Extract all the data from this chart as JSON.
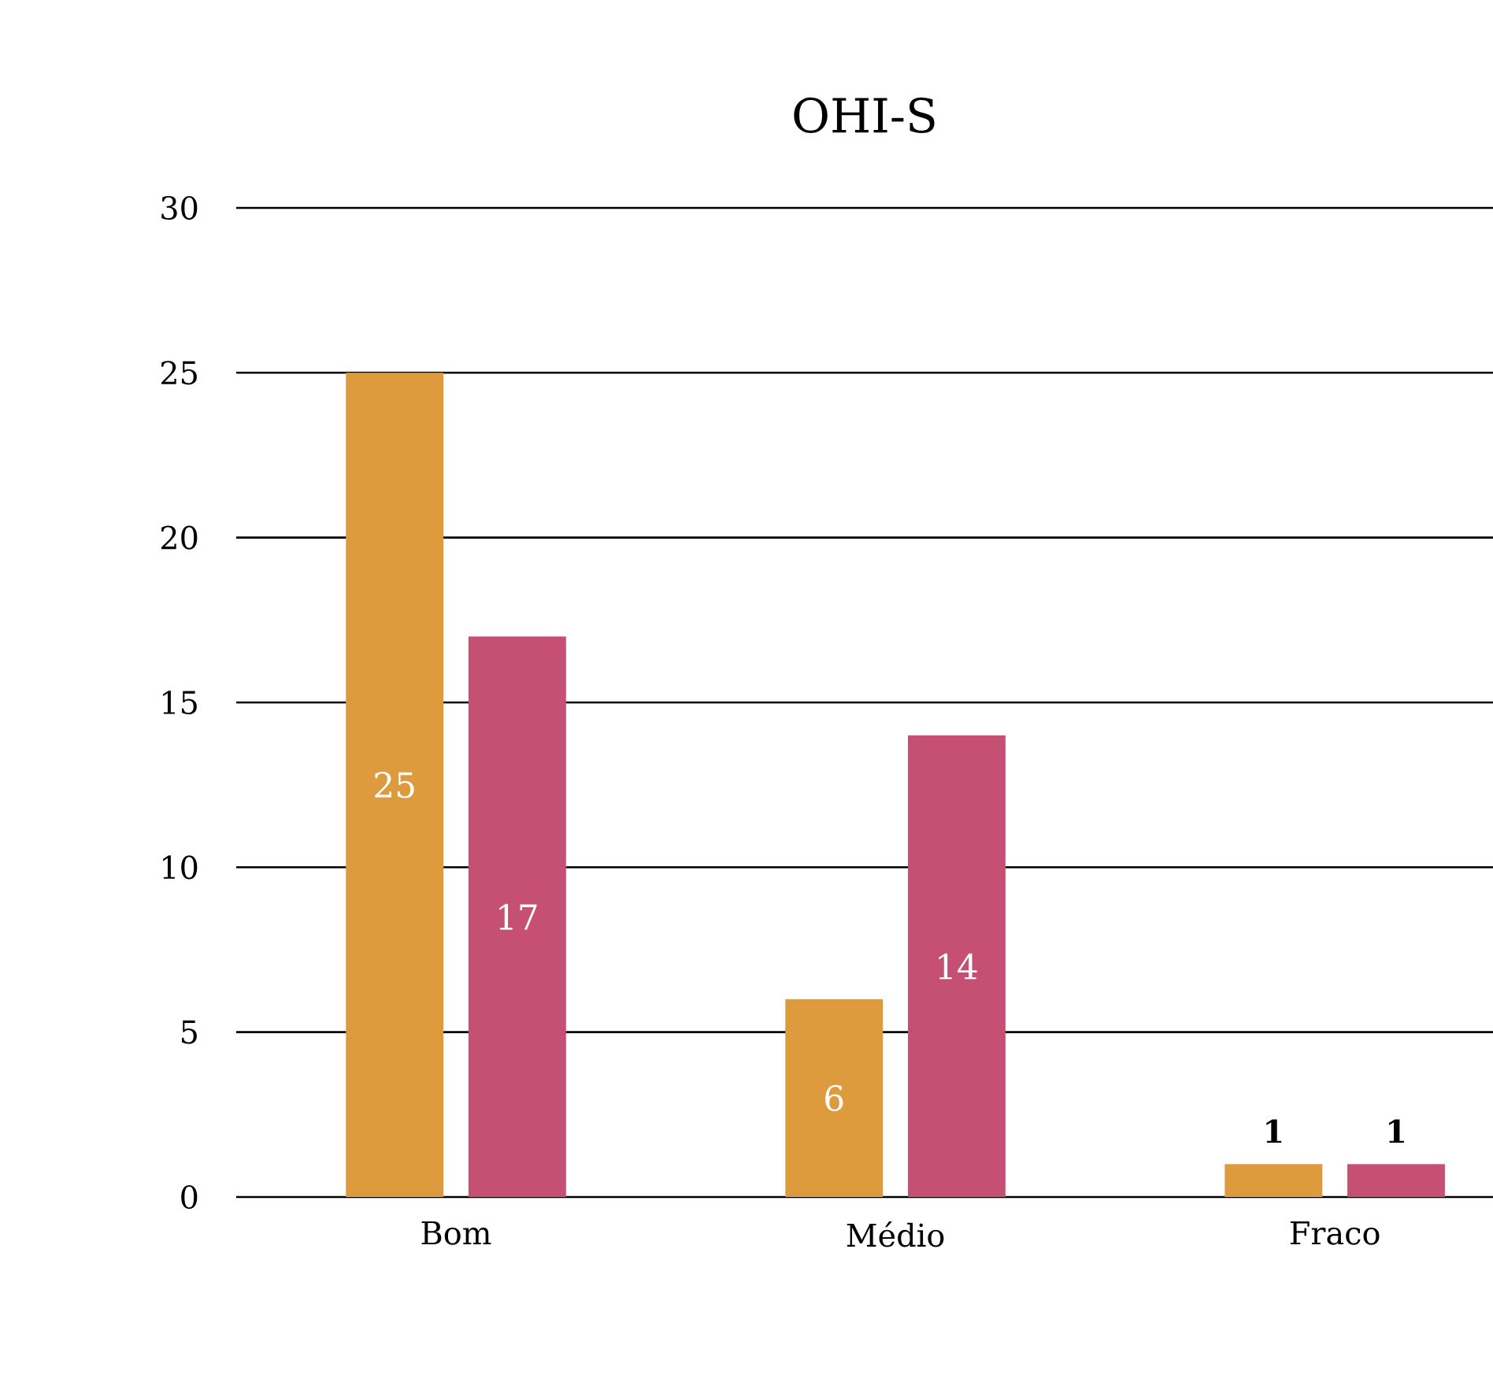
{
  "chart_data": {
    "type": "bar",
    "title": "OHI-S",
    "categories": [
      "Bom",
      "Médio",
      "Fraco"
    ],
    "series": [
      {
        "color": "#de9b3e",
        "values": [
          25,
          6,
          1
        ]
      },
      {
        "color": "#c65073",
        "values": [
          17,
          14,
          1
        ]
      }
    ],
    "ylim": [
      0,
      30
    ],
    "yticks": [
      0,
      5,
      10,
      15,
      20,
      25,
      30
    ],
    "grid": "y",
    "data_labels": true
  }
}
